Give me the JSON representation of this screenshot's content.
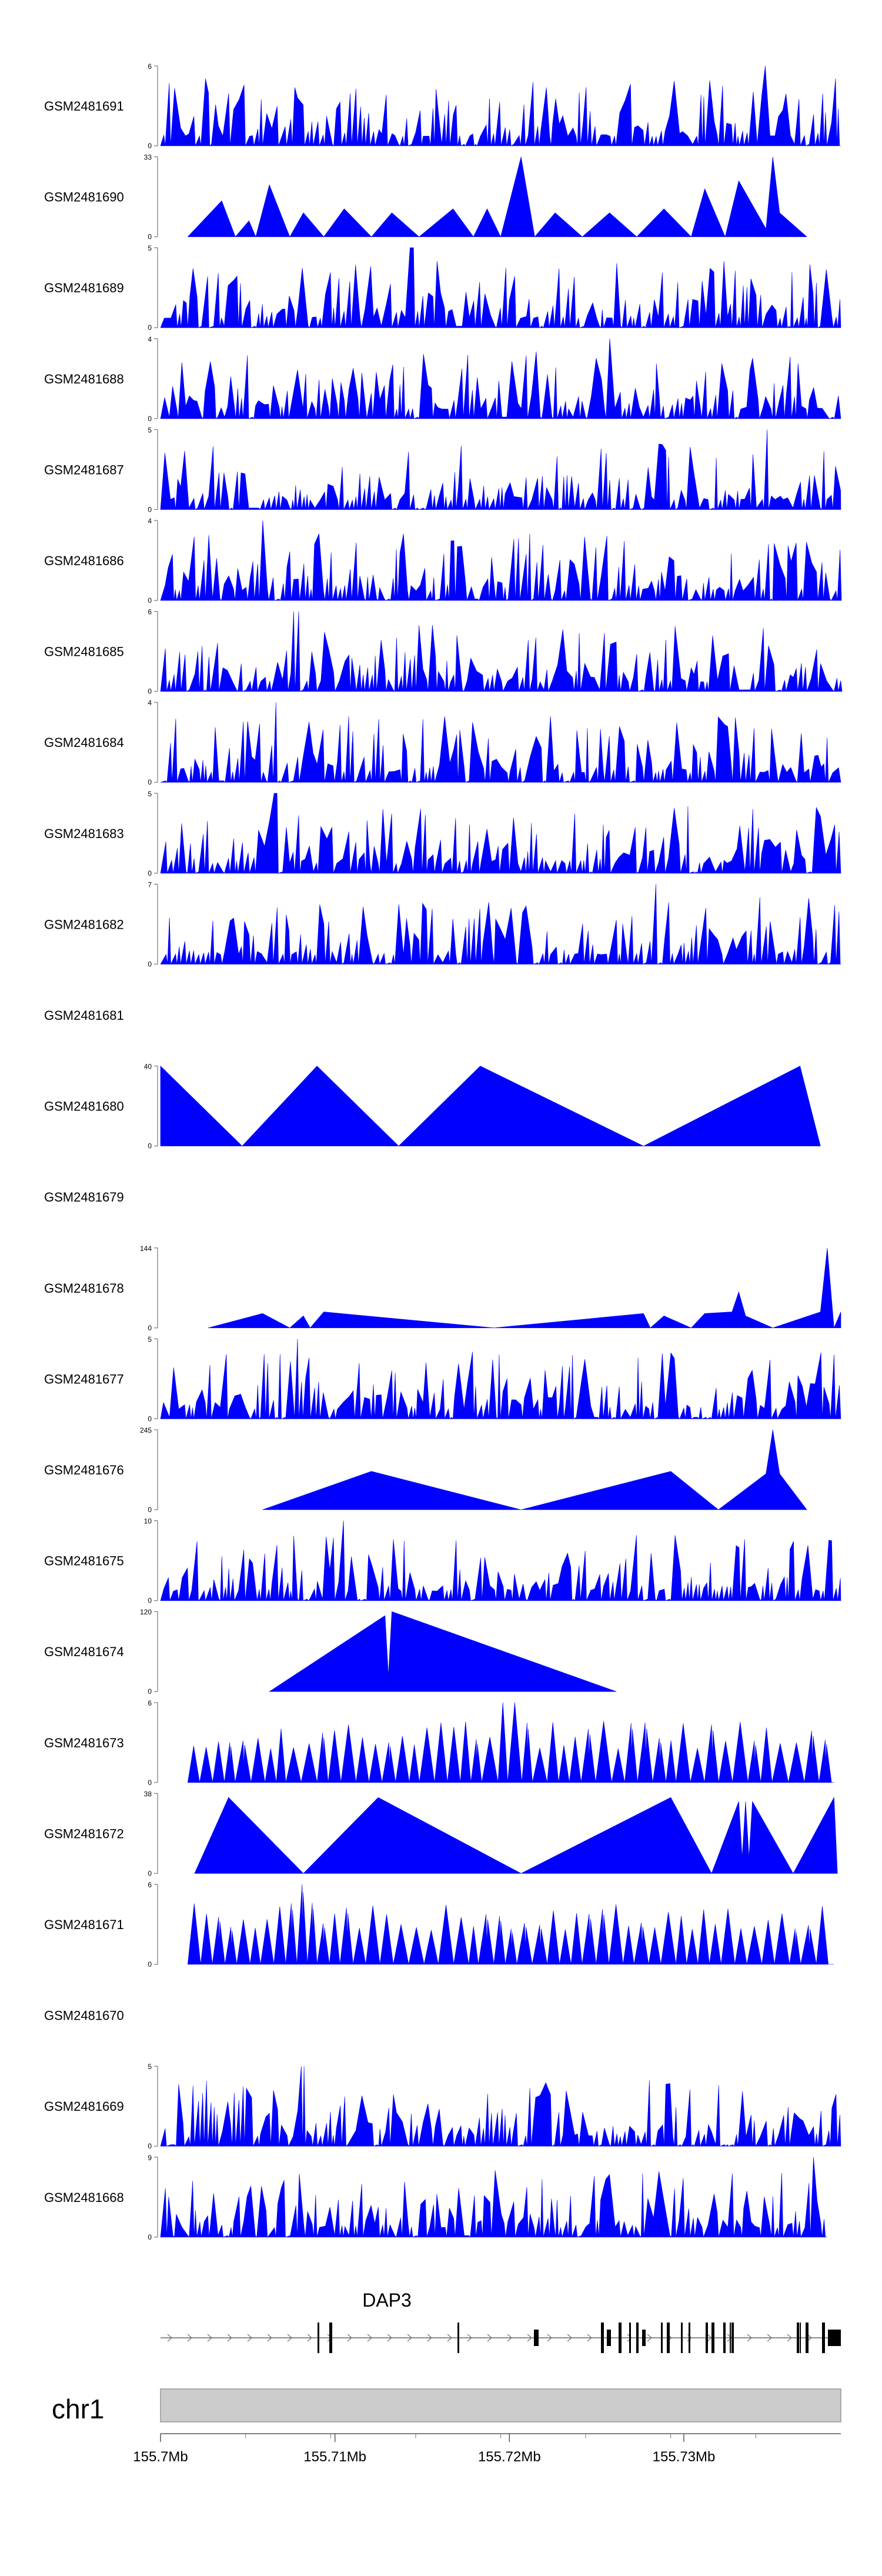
{
  "chart_data": {
    "type": "area",
    "chromosome": "chr1",
    "gene": {
      "name": "DAP3"
    },
    "x_axis": {
      "ticks": [
        "155.7Mb",
        "155.71Mb",
        "155.72Mb",
        "155.73Mb"
      ],
      "range_mb": [
        155.7,
        155.739
      ]
    },
    "tracks": [
      {
        "name": "GSM2481691",
        "ymax": 6,
        "style": "dense",
        "seed": 11,
        "start": 0.0,
        "end": 1.0,
        "peak": 0.89
      },
      {
        "name": "GSM2481690",
        "ymax": 33,
        "style": "sparse",
        "seed": 12,
        "start": 0.04,
        "end": 0.95,
        "points": [
          [
            0.04,
            0
          ],
          [
            0.09,
            0.45
          ],
          [
            0.11,
            0
          ],
          [
            0.13,
            0.2
          ],
          [
            0.14,
            0
          ],
          [
            0.16,
            0.65
          ],
          [
            0.19,
            0
          ],
          [
            0.21,
            0.3
          ],
          [
            0.24,
            0
          ],
          [
            0.27,
            0.35
          ],
          [
            0.31,
            0
          ],
          [
            0.34,
            0.3
          ],
          [
            0.38,
            0
          ],
          [
            0.43,
            0.35
          ],
          [
            0.46,
            0
          ],
          [
            0.48,
            0.35
          ],
          [
            0.5,
            0
          ],
          [
            0.53,
            1.0
          ],
          [
            0.55,
            0
          ],
          [
            0.58,
            0.3
          ],
          [
            0.62,
            0
          ],
          [
            0.66,
            0.3
          ],
          [
            0.7,
            0
          ],
          [
            0.74,
            0.35
          ],
          [
            0.78,
            0
          ],
          [
            0.8,
            0.6
          ],
          [
            0.83,
            0
          ],
          [
            0.85,
            0.7
          ],
          [
            0.89,
            0.1
          ],
          [
            0.9,
            1.0
          ],
          [
            0.91,
            0.3
          ],
          [
            0.95,
            0
          ]
        ]
      },
      {
        "name": "GSM2481689",
        "ymax": 5,
        "style": "dense",
        "seed": 13,
        "start": 0.0,
        "end": 1.0,
        "peak": 0.37
      },
      {
        "name": "GSM2481688",
        "ymax": 4,
        "style": "dense",
        "seed": 14,
        "start": 0.0,
        "end": 1.0,
        "peak": 0.66
      },
      {
        "name": "GSM2481687",
        "ymax": 5,
        "style": "dense",
        "seed": 15,
        "start": 0.0,
        "end": 1.0,
        "peak": 0.89
      },
      {
        "name": "GSM2481686",
        "ymax": 4,
        "style": "dense",
        "seed": 16,
        "start": 0.0,
        "end": 1.0,
        "peak": 0.15
      },
      {
        "name": "GSM2481685",
        "ymax": 6,
        "style": "dense",
        "seed": 17,
        "start": 0.0,
        "end": 1.0,
        "peak": 0.2
      },
      {
        "name": "GSM2481684",
        "ymax": 4,
        "style": "dense",
        "seed": 18,
        "start": 0.0,
        "end": 1.0,
        "peak": 0.17
      },
      {
        "name": "GSM2481683",
        "ymax": 5,
        "style": "dense",
        "seed": 19,
        "start": 0.0,
        "end": 1.0,
        "peak": 0.17
      },
      {
        "name": "GSM2481682",
        "ymax": 7,
        "style": "dense",
        "seed": 20,
        "start": 0.0,
        "end": 1.0,
        "peak": 0.73
      },
      {
        "name": "GSM2481681",
        "ymax": null,
        "style": "empty"
      },
      {
        "name": "GSM2481680",
        "ymax": 40,
        "style": "sparse",
        "seed": 21,
        "start": 0.0,
        "end": 0.97,
        "points": [
          [
            0.0,
            1.0
          ],
          [
            0.12,
            0
          ],
          [
            0.23,
            1.0
          ],
          [
            0.35,
            0
          ],
          [
            0.47,
            1.0
          ],
          [
            0.71,
            0
          ],
          [
            0.94,
            1.0
          ],
          [
            0.97,
            0
          ]
        ]
      },
      {
        "name": "GSM2481679",
        "ymax": null,
        "style": "empty"
      },
      {
        "name": "GSM2481678",
        "ymax": 144,
        "style": "sparse",
        "seed": 22,
        "start": 0.07,
        "end": 1.0,
        "points": [
          [
            0.07,
            0
          ],
          [
            0.15,
            0.18
          ],
          [
            0.19,
            0
          ],
          [
            0.21,
            0.15
          ],
          [
            0.22,
            0
          ],
          [
            0.24,
            0.2
          ],
          [
            0.49,
            0
          ],
          [
            0.71,
            0.18
          ],
          [
            0.72,
            0
          ],
          [
            0.74,
            0.15
          ],
          [
            0.78,
            0
          ],
          [
            0.8,
            0.18
          ],
          [
            0.84,
            0.2
          ],
          [
            0.85,
            0.45
          ],
          [
            0.86,
            0.15
          ],
          [
            0.9,
            0
          ],
          [
            0.97,
            0.2
          ],
          [
            0.98,
            1.0
          ],
          [
            0.99,
            0
          ],
          [
            1.0,
            0.2
          ]
        ]
      },
      {
        "name": "GSM2481677",
        "ymax": 5,
        "style": "dense",
        "seed": 23,
        "start": 0.0,
        "end": 1.0,
        "peak": 0.2
      },
      {
        "name": "GSM2481676",
        "ymax": 245,
        "style": "sparse",
        "seed": 24,
        "start": 0.15,
        "end": 0.95,
        "points": [
          [
            0.15,
            0
          ],
          [
            0.31,
            0.48
          ],
          [
            0.53,
            0
          ],
          [
            0.75,
            0.48
          ],
          [
            0.82,
            0
          ],
          [
            0.89,
            0.45
          ],
          [
            0.9,
            1.0
          ],
          [
            0.91,
            0.45
          ],
          [
            0.95,
            0
          ]
        ]
      },
      {
        "name": "GSM2481675",
        "ymax": 10,
        "style": "dense",
        "seed": 25,
        "start": 0.0,
        "end": 1.0,
        "peak": 0.27
      },
      {
        "name": "GSM2481674",
        "ymax": 120,
        "style": "sparse",
        "seed": 26,
        "start": 0.16,
        "end": 0.67,
        "points": [
          [
            0.16,
            0
          ],
          [
            0.33,
            0.95
          ],
          [
            0.335,
            0.2
          ],
          [
            0.34,
            1.0
          ],
          [
            0.67,
            0
          ]
        ]
      },
      {
        "name": "GSM2481673",
        "ymax": 6,
        "style": "rhythm",
        "seed": 27,
        "start": 0.04,
        "end": 0.99,
        "peak": 0.5
      },
      {
        "name": "GSM2481672",
        "ymax": 38,
        "style": "sparse",
        "seed": 28,
        "start": 0.05,
        "end": 0.99,
        "points": [
          [
            0.05,
            0
          ],
          [
            0.1,
            0.95
          ],
          [
            0.21,
            0
          ],
          [
            0.32,
            0.95
          ],
          [
            0.53,
            0
          ],
          [
            0.75,
            0.95
          ],
          [
            0.81,
            0
          ],
          [
            0.85,
            0.9
          ],
          [
            0.855,
            0.2
          ],
          [
            0.86,
            0.9
          ],
          [
            0.865,
            0.2
          ],
          [
            0.87,
            0.9
          ],
          [
            0.93,
            0
          ],
          [
            0.99,
            0.95
          ],
          [
            0.995,
            0
          ]
        ]
      },
      {
        "name": "GSM2481671",
        "ymax": 6,
        "style": "rhythm",
        "seed": 29,
        "start": 0.04,
        "end": 0.99,
        "peak": 0.2
      },
      {
        "name": "GSM2481670",
        "ymax": null,
        "style": "empty"
      },
      {
        "name": "GSM2481669",
        "ymax": 5,
        "style": "dense",
        "seed": 30,
        "start": 0.0,
        "end": 1.0,
        "peak": 0.21
      },
      {
        "name": "GSM2481668",
        "ymax": 9,
        "style": "dense",
        "seed": 31,
        "start": 0.0,
        "end": 0.98,
        "peak": 0.96
      }
    ]
  }
}
